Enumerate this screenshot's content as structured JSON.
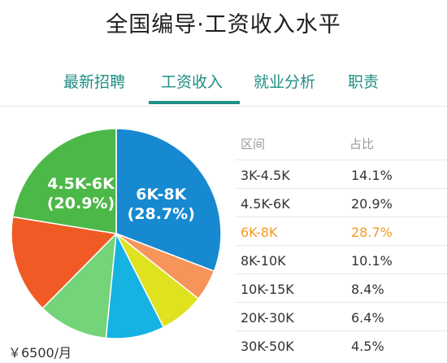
{
  "page": {
    "title": "全国编导·工资收入水平"
  },
  "tabs": [
    {
      "label": "最新招聘",
      "active": false
    },
    {
      "label": "工资收入",
      "active": true
    },
    {
      "label": "就业分析",
      "active": false
    },
    {
      "label": "职责",
      "active": false
    }
  ],
  "colors": {
    "accent": "#1f8f84",
    "highlight": "#f39a1f"
  },
  "summary": {
    "average": "￥6500/月"
  },
  "table": {
    "headers": {
      "range": "区间",
      "share": "占比"
    },
    "rows": [
      {
        "range": "3K-4.5K",
        "share": "14.1%",
        "highlight": false
      },
      {
        "range": "4.5K-6K",
        "share": "20.9%",
        "highlight": false
      },
      {
        "range": "6K-8K",
        "share": "28.7%",
        "highlight": true
      },
      {
        "range": "8K-10K",
        "share": "10.1%",
        "highlight": false
      },
      {
        "range": "10K-15K",
        "share": "8.4%",
        "highlight": false
      },
      {
        "range": "20K-30K",
        "share": "6.4%",
        "highlight": false
      },
      {
        "range": "30K-50K",
        "share": "4.5%",
        "highlight": false
      }
    ]
  },
  "chart_data": {
    "type": "pie",
    "categories": [
      "3K-4.5K",
      "4.5K-6K",
      "6K-8K",
      "8K-10K",
      "10K-15K",
      "20K-30K",
      "30K-50K"
    ],
    "values": [
      14.1,
      20.9,
      28.7,
      10.1,
      8.4,
      6.4,
      4.5
    ],
    "colors": [
      "#f05a24",
      "#4cb848",
      "#1689d1",
      "#74d479",
      "#15b2e2",
      "#dfe21e",
      "#f7945a"
    ],
    "slice_labels": [
      {
        "category": "6K-8K",
        "range": "6K-8K",
        "pct": "(28.7%)"
      },
      {
        "category": "4.5K-6K",
        "range": "4.5K-6K",
        "pct": "(20.9%)"
      }
    ]
  }
}
